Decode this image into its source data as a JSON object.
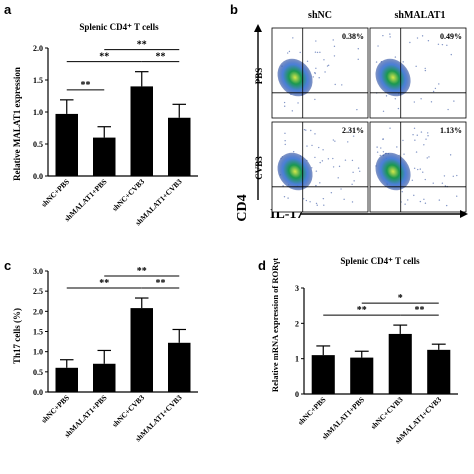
{
  "panel_letters": {
    "a": "a",
    "b": "b",
    "c": "c",
    "d": "d"
  },
  "colors": {
    "bar": "#000000",
    "density_hi": "#1a9850",
    "density_mid": "#4a7fd8",
    "density_lo": "#3050a0"
  },
  "chart_data": [
    {
      "panel": "a",
      "type": "bar",
      "title": "Splenic CD4⁺ T cells",
      "ylabel": "Relative MALAT1 expression",
      "categories": [
        "shNC+PBS",
        "shMALAT1+PBS",
        "shNC+CVB3",
        "shMALAT1+CVB3"
      ],
      "values": [
        0.97,
        0.6,
        1.4,
        0.91
      ],
      "errors": [
        0.22,
        0.17,
        0.23,
        0.21
      ],
      "ylim": [
        0,
        2.0
      ],
      "yticks": [
        "0.0",
        "0.5",
        "1.0",
        "1.5",
        "2.0"
      ],
      "significance": [
        {
          "from": 0,
          "to": 1,
          "label": "**"
        },
        {
          "from": 0,
          "to": 2,
          "label": "**"
        },
        {
          "from": 1,
          "to": 3,
          "label": "**"
        },
        {
          "from": 2,
          "to": 3,
          "label": "**"
        }
      ]
    },
    {
      "panel": "c",
      "type": "bar",
      "title": "",
      "ylabel": "Th17 cells (%)",
      "categories": [
        "shNC+PBS",
        "shMALAT1+PBS",
        "shNC+CVB3",
        "shMALAT1+CVB3"
      ],
      "values": [
        0.6,
        0.7,
        2.08,
        1.22
      ],
      "errors": [
        0.2,
        0.33,
        0.25,
        0.33
      ],
      "ylim": [
        0,
        3.0
      ],
      "yticks": [
        "0.0",
        "0.5",
        "1.0",
        "1.5",
        "2.0",
        "2.5",
        "3.0"
      ],
      "significance": [
        {
          "from": 0,
          "to": 2,
          "label": "**"
        },
        {
          "from": 1,
          "to": 3,
          "label": "**"
        },
        {
          "from": 2,
          "to": 3,
          "label": "**"
        }
      ]
    },
    {
      "panel": "d",
      "type": "bar",
      "title": "Splenic CD4⁺ T cells",
      "ylabel": "Relative mRNA expression of RORγt",
      "categories": [
        "shNC+PBS",
        "shMALAT1+PBS",
        "shNC+CVB3",
        "shMALAT1+CVB3"
      ],
      "values": [
        1.1,
        1.03,
        1.7,
        1.25
      ],
      "errors": [
        0.26,
        0.18,
        0.25,
        0.16
      ],
      "ylim": [
        0,
        3.0
      ],
      "yticks": [
        "0",
        "1",
        "2",
        "3"
      ],
      "significance": [
        {
          "from": 0,
          "to": 2,
          "label": "**"
        },
        {
          "from": 1,
          "to": 3,
          "label": "*"
        },
        {
          "from": 2,
          "to": 3,
          "label": "**"
        }
      ]
    }
  ],
  "flow": {
    "columns": [
      "shNC",
      "shMALAT1"
    ],
    "rows": [
      "PBS",
      "CVB3"
    ],
    "percentages": [
      [
        "0.38%",
        "0.49%"
      ],
      [
        "2.31%",
        "1.13%"
      ]
    ],
    "ylabel": "CD4",
    "xlabel": "IL-17"
  }
}
